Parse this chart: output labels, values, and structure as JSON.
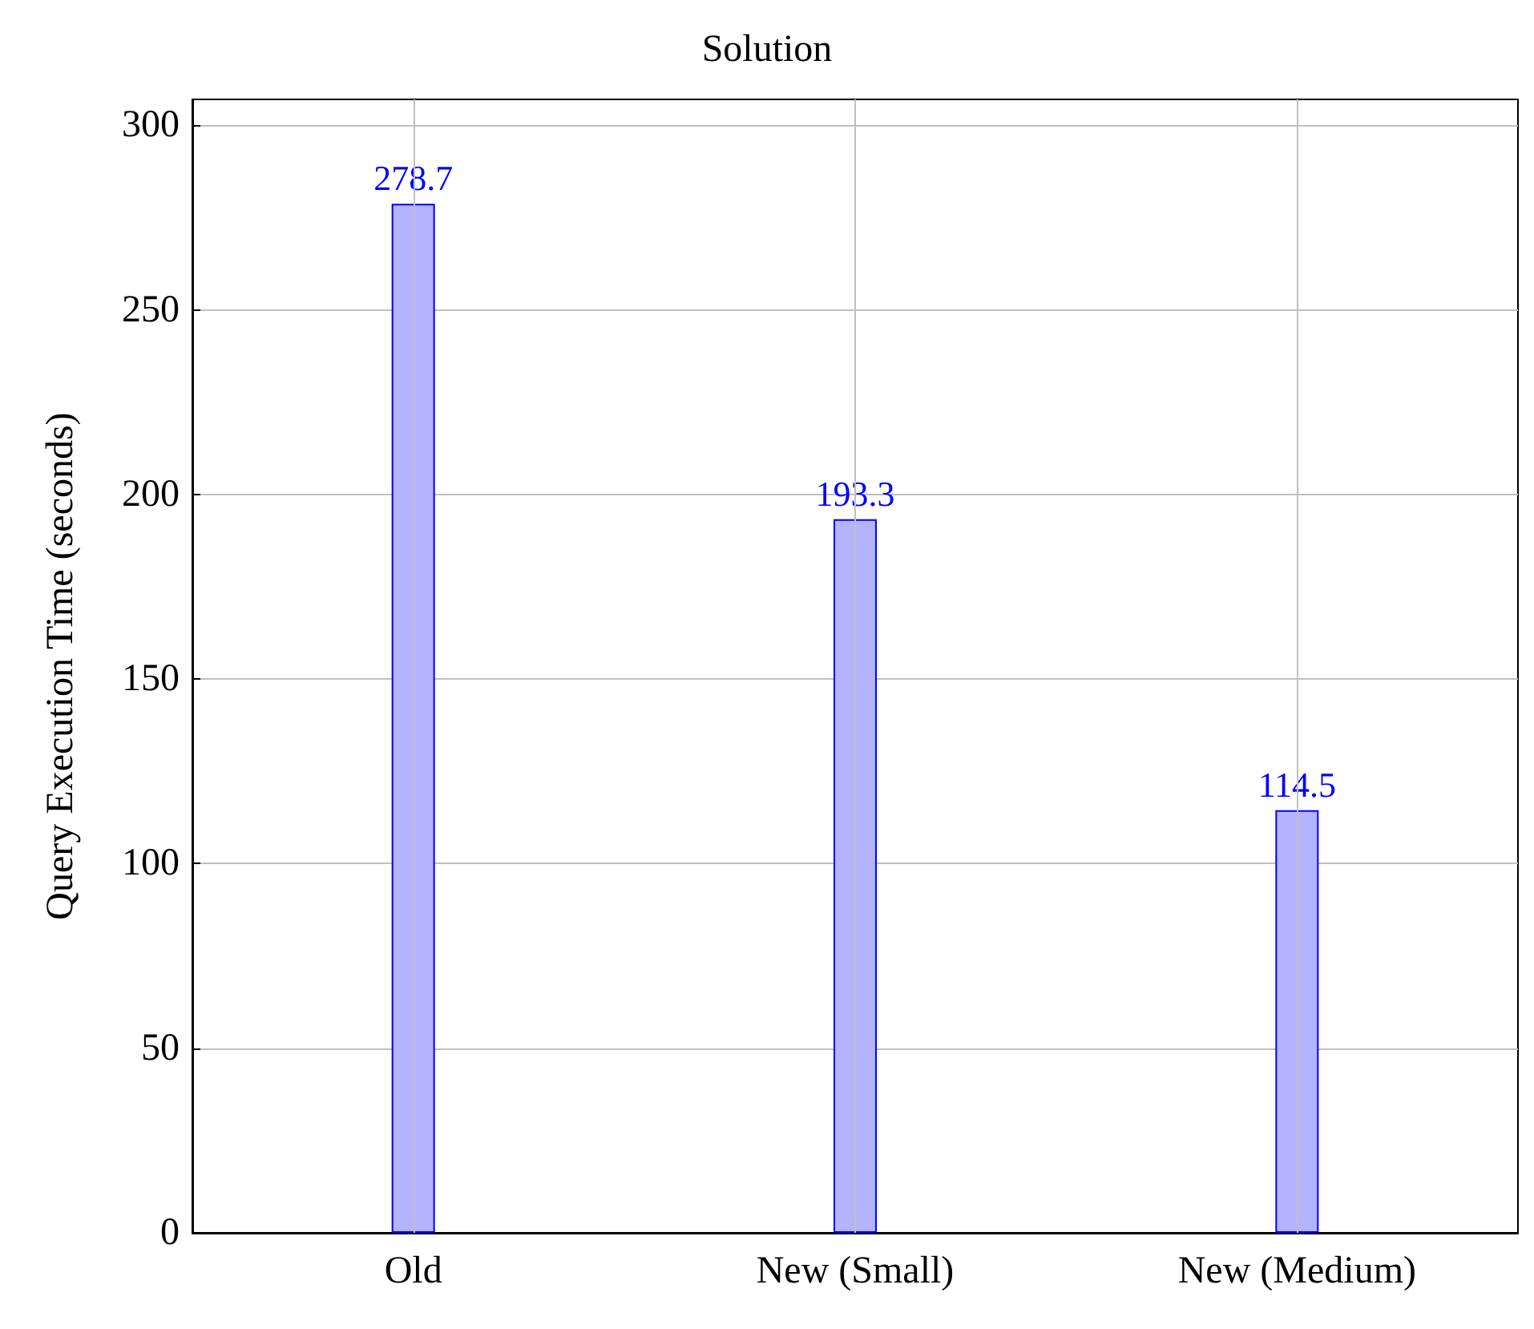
{
  "chart_data": {
    "type": "bar",
    "title": "Solution",
    "ylabel": "Query Execution Time (seconds)",
    "categories": [
      "Old",
      "New (Small)",
      "New (Medium)"
    ],
    "values": [
      278.7,
      193.3,
      114.5
    ],
    "color": "#b3b3ff",
    "ylim": [
      0,
      307
    ],
    "yticks": [
      0,
      50,
      100,
      150,
      200,
      250,
      300
    ],
    "grid": true,
    "data_labels": true
  }
}
